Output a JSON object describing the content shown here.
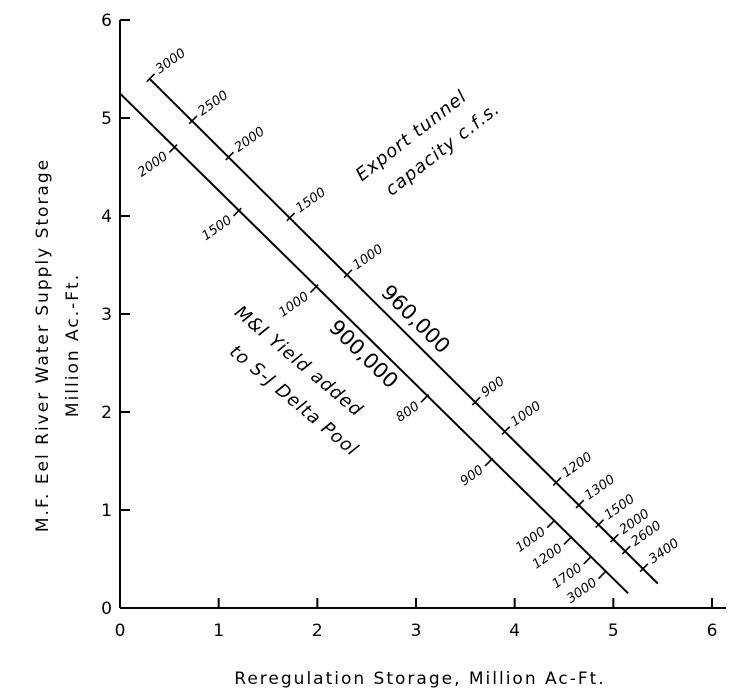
{
  "chart_data": {
    "type": "line",
    "title": "",
    "xlabel": "Reregulation Storage, Million Ac-Ft.",
    "ylabel_line1": "M.F. Eel River Water Supply Storage",
    "ylabel_line2": "Million  Ac.-Ft.",
    "xlim": [
      0,
      6
    ],
    "ylim": [
      0,
      6
    ],
    "x_ticks": [
      "0",
      "1",
      "2",
      "3",
      "4",
      "5",
      "6"
    ],
    "y_ticks": [
      "0",
      "1",
      "2",
      "3",
      "4",
      "5",
      "6"
    ],
    "grid": false,
    "series": [
      {
        "name": "960,000",
        "x": [
          0.3,
          5.45
        ],
        "y": [
          5.4,
          0.25
        ],
        "scale_side": "upper",
        "marks": [
          {
            "label": "3000",
            "x": 0.3,
            "y": 5.4
          },
          {
            "label": "2500",
            "x": 0.73,
            "y": 4.97
          },
          {
            "label": "2000",
            "x": 1.1,
            "y": 4.6
          },
          {
            "label": "1500",
            "x": 1.72,
            "y": 3.98
          },
          {
            "label": "1000",
            "x": 2.3,
            "y": 3.4
          },
          {
            "label": "900",
            "x": 3.6,
            "y": 2.1
          },
          {
            "label": "1000",
            "x": 3.9,
            "y": 1.8
          },
          {
            "label": "1200",
            "x": 4.42,
            "y": 1.28
          },
          {
            "label": "1300",
            "x": 4.65,
            "y": 1.05
          },
          {
            "label": "1500",
            "x": 4.85,
            "y": 0.85
          },
          {
            "label": "2000",
            "x": 5.0,
            "y": 0.7
          },
          {
            "label": "2600",
            "x": 5.12,
            "y": 0.58
          },
          {
            "label": "3400",
            "x": 5.3,
            "y": 0.4
          }
        ]
      },
      {
        "name": "900,000",
        "x": [
          0.0,
          5.15
        ],
        "y": [
          5.25,
          0.15
        ],
        "scale_side": "lower",
        "marks": [
          {
            "label": "2000",
            "x": 0.55,
            "y": 4.7
          },
          {
            "label": "1500",
            "x": 1.2,
            "y": 4.05
          },
          {
            "label": "1000",
            "x": 1.98,
            "y": 3.27
          },
          {
            "label": "800",
            "x": 3.1,
            "y": 2.15
          },
          {
            "label": "900",
            "x": 3.75,
            "y": 1.5
          },
          {
            "label": "1000",
            "x": 4.38,
            "y": 0.87
          },
          {
            "label": "1200",
            "x": 4.55,
            "y": 0.7
          },
          {
            "label": "1700",
            "x": 4.75,
            "y": 0.5
          },
          {
            "label": "3000",
            "x": 4.9,
            "y": 0.35
          }
        ]
      }
    ],
    "annotations": [
      {
        "text": "Export tunnel",
        "x": 2.45,
        "y": 4.35
      },
      {
        "text": "capacity c.f.s.",
        "x": 2.75,
        "y": 4.2
      },
      {
        "text": "M&I Yield added",
        "x": 1.15,
        "y": 3.0
      },
      {
        "text": "to S-J Delta Pool",
        "x": 1.1,
        "y": 2.6
      }
    ]
  }
}
